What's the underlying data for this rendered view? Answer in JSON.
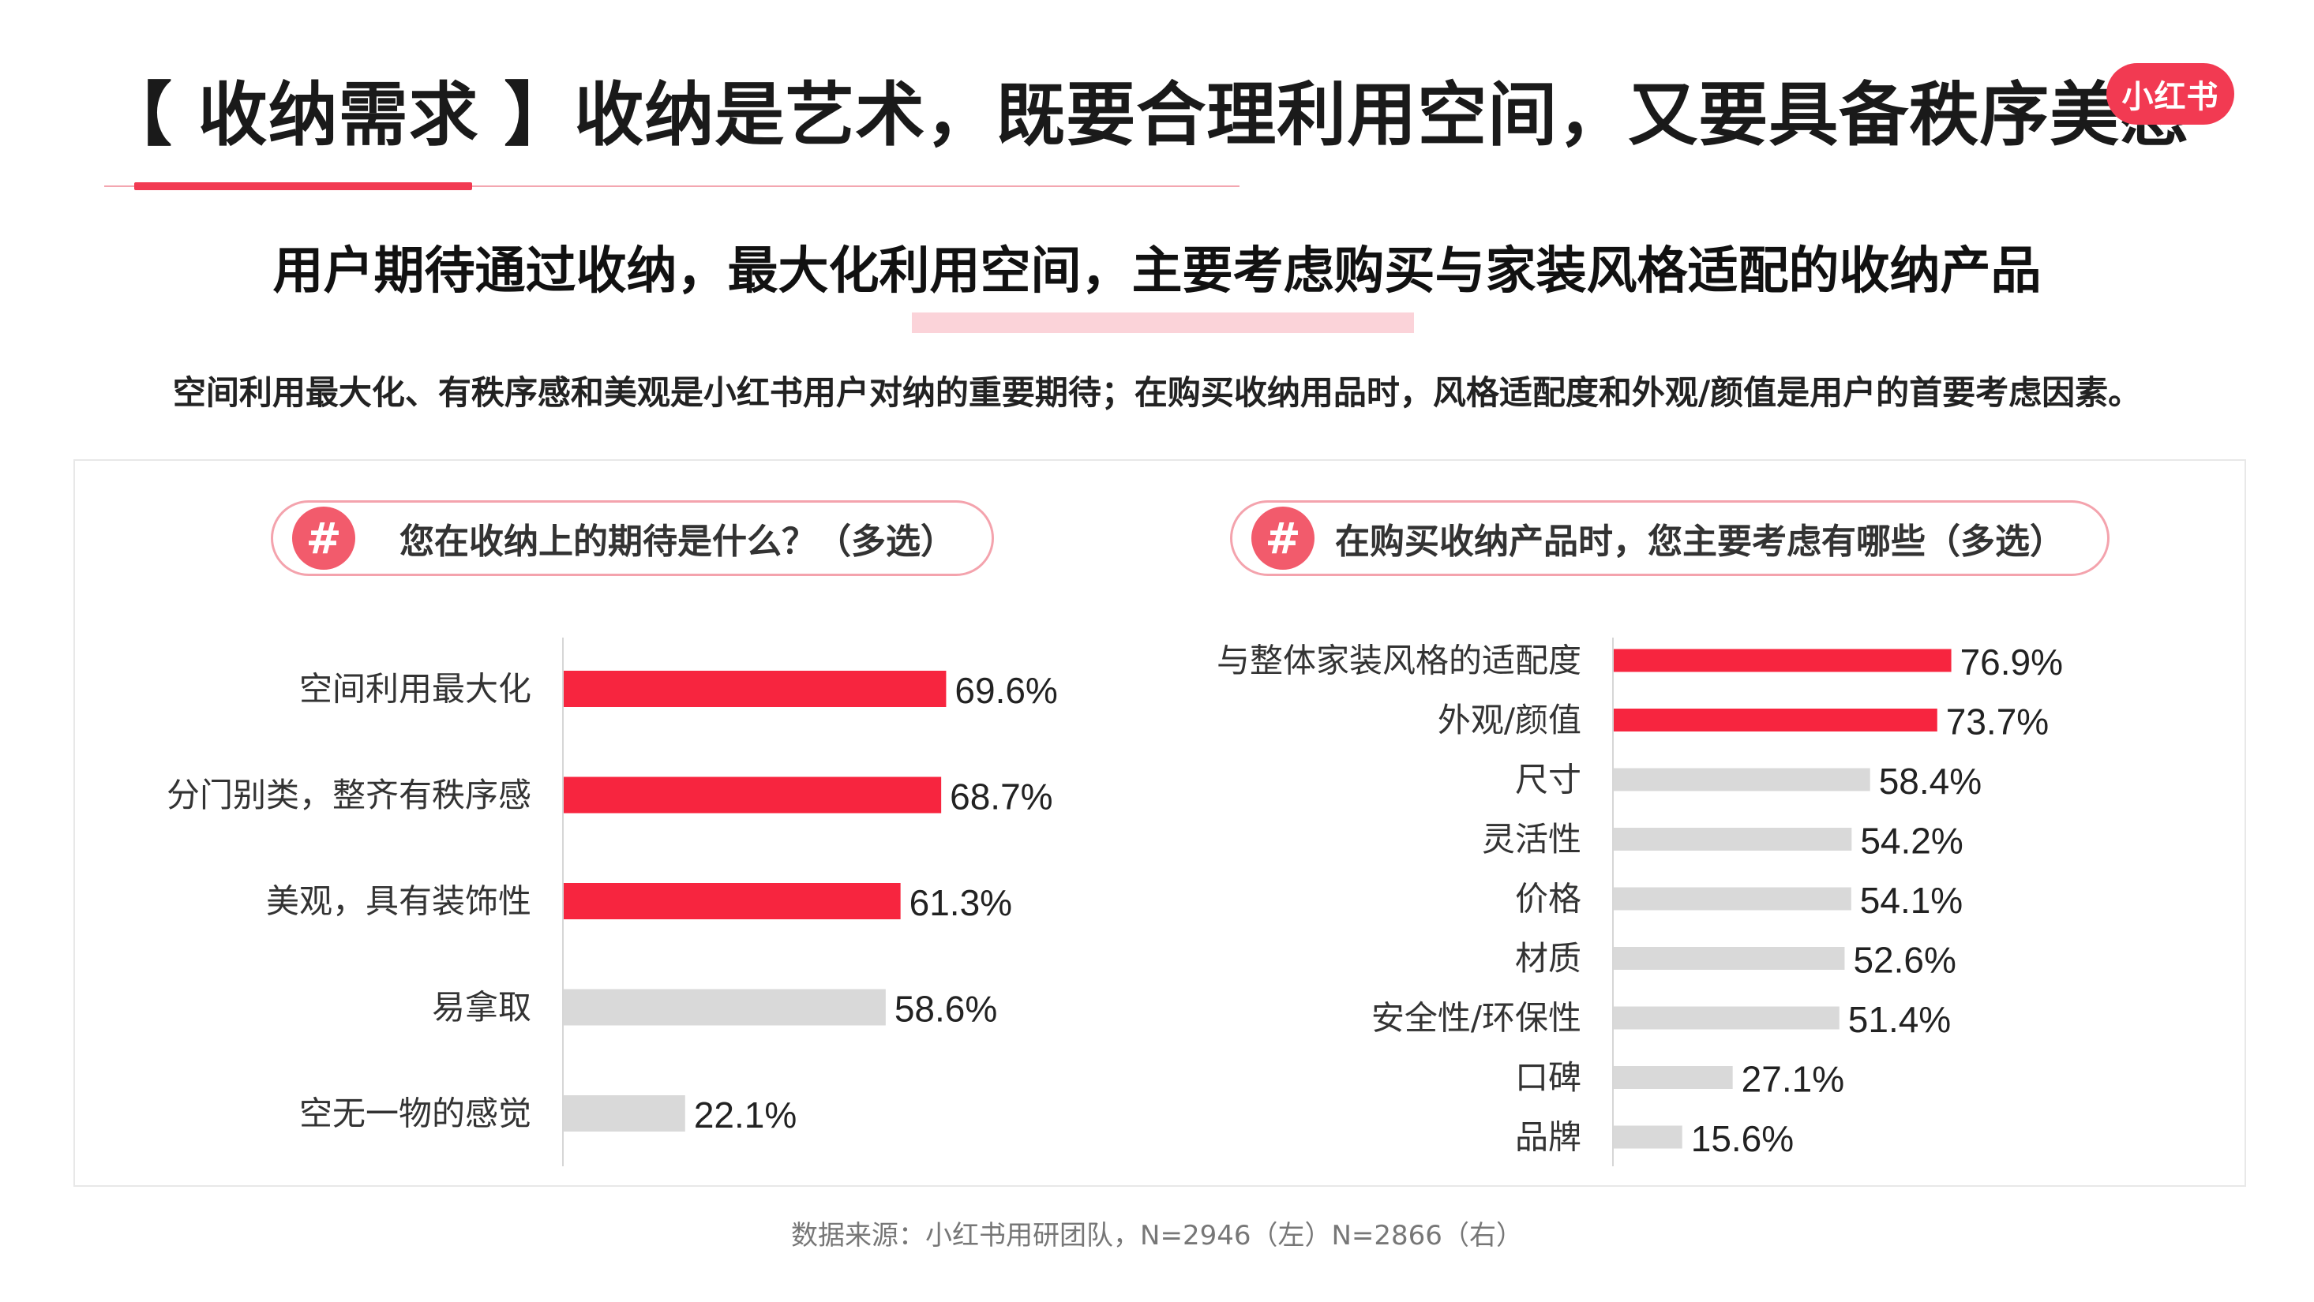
{
  "header": {
    "title": "【 收纳需求 】收纳是艺术，既要合理利用空间，又要具备秩序美感",
    "brand": "小红书",
    "subtitle": "用户期待通过收纳，最大化利用空间，主要考虑购买与家装风格适配的收纳产品",
    "description": "空间利用最大化、有秩序感和美观是小红书用户对纳的重要期待；在购买收纳用品时，风格适配度和外观/颜值是用户的首要考虑因素。"
  },
  "colors": {
    "accent": "#f23a52",
    "highlight_bar": "#f7253f",
    "muted_bar": "#d9d9d9",
    "pill_border": "#f4a3ad",
    "hash_circle": "#f25b6c"
  },
  "chart_data": [
    {
      "type": "bar",
      "orientation": "horizontal",
      "title": "您在收纳上的期待是什么？（多选）",
      "categories": [
        "空间利用最大化",
        "分门别类，整齐有秩序感",
        "美观，具有装饰性",
        "易拿取",
        "空无一物的感觉"
      ],
      "values": [
        69.6,
        68.7,
        61.3,
        58.6,
        22.1
      ],
      "labels": [
        "69.6%",
        "68.7%",
        "61.3%",
        "58.6%",
        "22.1%"
      ],
      "highlighted": [
        true,
        true,
        true,
        false,
        false
      ],
      "unit": "%",
      "xlim": [
        0,
        100
      ]
    },
    {
      "type": "bar",
      "orientation": "horizontal",
      "title": "在购买收纳产品时，您主要考虑有哪些（多选）",
      "categories": [
        "与整体家装风格的适配度",
        "外观/颜值",
        "尺寸",
        "灵活性",
        "价格",
        "材质",
        "安全性/环保性",
        "口碑",
        "品牌"
      ],
      "values": [
        76.9,
        73.7,
        58.4,
        54.2,
        54.1,
        52.6,
        51.4,
        27.1,
        15.6
      ],
      "labels": [
        "76.9%",
        "73.7%",
        "58.4%",
        "54.2%",
        "54.1%",
        "52.6%",
        "51.4%",
        "27.1%",
        "15.6%"
      ],
      "highlighted": [
        true,
        true,
        false,
        false,
        false,
        false,
        false,
        false,
        false
      ],
      "unit": "%",
      "xlim": [
        0,
        100
      ]
    }
  ],
  "footer": {
    "source": "数据来源：小红书用研团队，N=2946（左）N=2866（右）"
  }
}
